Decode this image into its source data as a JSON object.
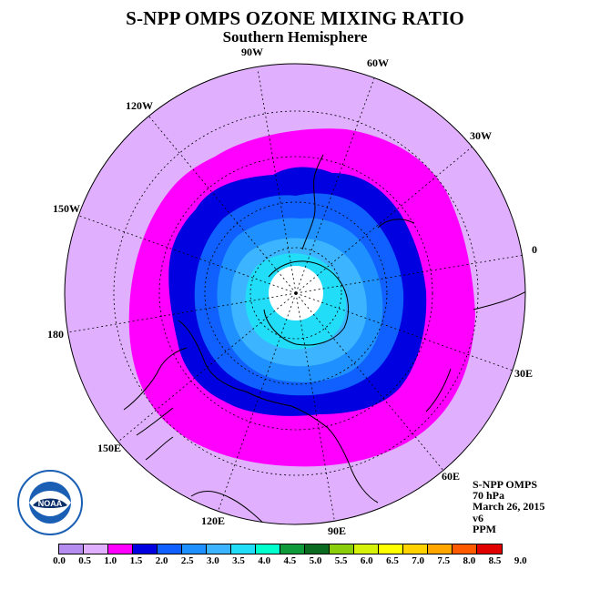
{
  "title": "S-NPP OMPS OZONE MIXING RATIO",
  "subtitle": "Southern Hemisphere",
  "longitude_labels": [
    {
      "name": "lon-90w",
      "text": "90W"
    },
    {
      "name": "lon-60w",
      "text": "60W"
    },
    {
      "name": "lon-30w",
      "text": "30W"
    },
    {
      "name": "lon-0",
      "text": "0"
    },
    {
      "name": "lon-30e",
      "text": "30E"
    },
    {
      "name": "lon-60e",
      "text": "60E"
    },
    {
      "name": "lon-90e",
      "text": "90E"
    },
    {
      "name": "lon-120e",
      "text": "120E"
    },
    {
      "name": "lon-150e",
      "text": "150E"
    },
    {
      "name": "lon-180",
      "text": "180"
    },
    {
      "name": "lon-150w",
      "text": "150W"
    },
    {
      "name": "lon-120w",
      "text": "120W"
    }
  ],
  "info": {
    "instrument": "S-NPP OMPS",
    "level": "70 hPa",
    "date": "March 26, 2015",
    "version": "v6",
    "units": "PPM"
  },
  "logo": {
    "text": "NOAA",
    "ring_text": "NATIONAL OCEANIC AND ATMOSPHERIC ADMINISTRATION · U.S. DEPARTMENT OF COMMERCE"
  },
  "colorbar": {
    "ticks": [
      "0.0",
      "0.5",
      "1.0",
      "1.5",
      "2.0",
      "2.5",
      "3.0",
      "3.5",
      "4.0",
      "4.5",
      "5.0",
      "5.5",
      "6.0",
      "6.5",
      "7.0",
      "7.5",
      "8.0",
      "8.5",
      "9.0"
    ],
    "colors": [
      "#b58cf0",
      "#e0b0ff",
      "#ff00ff",
      "#0000e0",
      "#1060ff",
      "#1e90ff",
      "#3cb4ff",
      "#22ddf7",
      "#00ffcc",
      "#0e9a3a",
      "#0a6a20",
      "#8acd0a",
      "#d6f20a",
      "#ffff00",
      "#ffd200",
      "#ffa600",
      "#ff5a00",
      "#e00000",
      "#7a4a34"
    ]
  },
  "field_colors": {
    "outer": "#e0b0ff",
    "ring_1_0": "#ff00ff",
    "ring_1_5": "#0000e0",
    "ring_2_0": "#1060ff",
    "ring_2_5": "#1e90ff",
    "ring_3_0": "#3cb4ff",
    "ring_3_5": "#22ddf7",
    "no_data": "#ffffff"
  }
}
